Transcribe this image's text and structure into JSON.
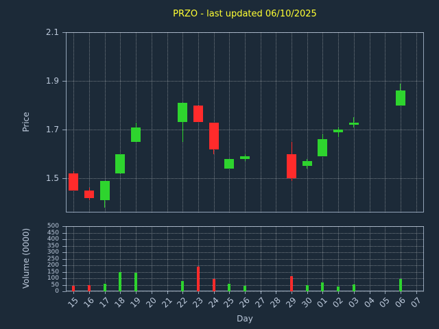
{
  "chart_data": {
    "type": "candlestick",
    "title": "PRZO - last updated 06/10/2025",
    "xlabel": "Day",
    "x_categories": [
      "15",
      "16",
      "17",
      "18",
      "19",
      "20",
      "21",
      "22",
      "23",
      "24",
      "25",
      "26",
      "27",
      "28",
      "29",
      "30",
      "01",
      "02",
      "03",
      "04",
      "05",
      "06",
      "07"
    ],
    "price_axis": {
      "label": "Price",
      "ticks": [
        "2.1",
        "1.9",
        "1.7",
        "1.5"
      ],
      "ylim": [
        1.36,
        2.1
      ],
      "grid": true
    },
    "volume_axis": {
      "label": "Volume (0000)",
      "ticks": [
        "500",
        "450",
        "400",
        "350",
        "300",
        "250",
        "200",
        "150",
        "100",
        "50",
        "0"
      ],
      "ylim": [
        0,
        500
      ],
      "grid": true
    },
    "series": [
      {
        "day": "15",
        "open": 1.52,
        "high": 1.53,
        "low": 1.45,
        "close": 1.45,
        "volume": 40
      },
      {
        "day": "16",
        "open": 1.45,
        "high": 1.46,
        "low": 1.41,
        "close": 1.42,
        "volume": 50
      },
      {
        "day": "17",
        "open": 1.41,
        "high": 1.49,
        "low": 1.38,
        "close": 1.49,
        "volume": 60
      },
      {
        "day": "18",
        "open": 1.52,
        "high": 1.6,
        "low": 1.52,
        "close": 1.6,
        "volume": 150
      },
      {
        "day": "19",
        "open": 1.65,
        "high": 1.73,
        "low": 1.65,
        "close": 1.71,
        "volume": 140
      },
      {
        "day": "22",
        "open": 1.73,
        "high": 1.81,
        "low": 1.65,
        "close": 1.81,
        "volume": 80
      },
      {
        "day": "23",
        "open": 1.8,
        "high": 1.8,
        "low": 1.73,
        "close": 1.73,
        "volume": 190
      },
      {
        "day": "24",
        "open": 1.73,
        "high": 1.73,
        "low": 1.6,
        "close": 1.62,
        "volume": 95
      },
      {
        "day": "25",
        "open": 1.54,
        "high": 1.58,
        "low": 1.54,
        "close": 1.58,
        "volume": 60
      },
      {
        "day": "26",
        "open": 1.58,
        "high": 1.6,
        "low": 1.57,
        "close": 1.59,
        "volume": 40
      },
      {
        "day": "29",
        "open": 1.6,
        "high": 1.65,
        "low": 1.49,
        "close": 1.5,
        "volume": 115
      },
      {
        "day": "30",
        "open": 1.55,
        "high": 1.58,
        "low": 1.54,
        "close": 1.57,
        "volume": 50
      },
      {
        "day": "01",
        "open": 1.59,
        "high": 1.68,
        "low": 1.59,
        "close": 1.66,
        "volume": 70
      },
      {
        "day": "02",
        "open": 1.69,
        "high": 1.71,
        "low": 1.67,
        "close": 1.7,
        "volume": 35
      },
      {
        "day": "03",
        "open": 1.72,
        "high": 1.75,
        "low": 1.71,
        "close": 1.73,
        "volume": 55
      },
      {
        "day": "06",
        "open": 1.8,
        "high": 1.89,
        "low": 1.8,
        "close": 1.86,
        "volume": 95
      }
    ],
    "colors": {
      "background": "#1c2a38",
      "up": "#2ed42e",
      "down": "#ff2b2b",
      "title": "#ffff33",
      "text": "#bcc9db",
      "spine": "#93a4b8"
    }
  }
}
